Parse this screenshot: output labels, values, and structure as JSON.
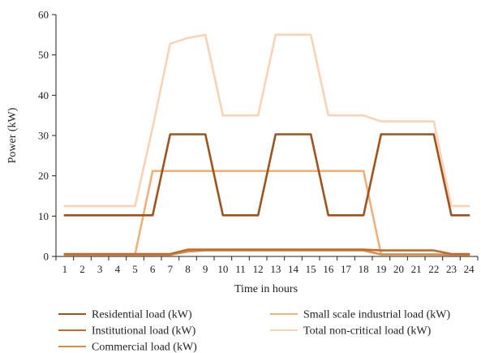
{
  "chart_data": {
    "type": "line",
    "title": "",
    "xlabel": "Time in hours",
    "ylabel": "Power (kW)",
    "categories": [
      "1",
      "2",
      "3",
      "4",
      "5",
      "6",
      "7",
      "8",
      "9",
      "10",
      "11",
      "12",
      "13",
      "14",
      "15",
      "16",
      "17",
      "18",
      "19",
      "20",
      "21",
      "22",
      "23",
      "24"
    ],
    "ylim": [
      0,
      60
    ],
    "yticks": [
      "0",
      "10",
      "20",
      "30",
      "40",
      "50",
      "60"
    ],
    "grid": false,
    "legend_position": "bottom",
    "series": [
      {
        "name": "Residential load (kW)",
        "color": "#a0521d",
        "values": [
          10.2,
          10.2,
          10.2,
          10.2,
          10.2,
          10.2,
          30.3,
          30.3,
          30.3,
          10.2,
          10.2,
          10.2,
          30.3,
          30.3,
          30.3,
          10.2,
          10.2,
          10.2,
          30.3,
          30.3,
          30.3,
          30.3,
          10.2,
          10.2
        ]
      },
      {
        "name": "Institutional load (kW)",
        "color": "#c06a2c",
        "values": [
          0.6,
          0.6,
          0.6,
          0.6,
          0.6,
          0.6,
          0.6,
          1.7,
          1.7,
          1.7,
          1.7,
          1.7,
          1.7,
          1.7,
          1.7,
          1.7,
          1.7,
          1.7,
          1.5,
          1.5,
          1.5,
          1.5,
          0.6,
          0.6
        ]
      },
      {
        "name": "Commercial load (kW)",
        "color": "#d98c4a",
        "values": [
          0.4,
          0.4,
          0.4,
          0.4,
          0.4,
          0.4,
          0.4,
          1.2,
          1.5,
          1.5,
          1.5,
          1.5,
          1.5,
          1.5,
          1.5,
          1.5,
          1.5,
          1.5,
          0.5,
          0.5,
          0.5,
          0.5,
          0.4,
          0.4
        ]
      },
      {
        "name": "Small scale industrial load (kW)",
        "color": "#f0b07a",
        "values": [
          0.5,
          0.5,
          0.5,
          0.5,
          0.5,
          21.2,
          21.2,
          21.2,
          21.2,
          21.2,
          21.2,
          21.2,
          21.2,
          21.2,
          21.2,
          21.2,
          21.2,
          21.2,
          0.5,
          0.5,
          0.5,
          0.5,
          0.5,
          0.5
        ]
      },
      {
        "name": "Total non-critical load (kW)",
        "color": "#f9d3b6",
        "values": [
          12.5,
          12.5,
          12.5,
          12.5,
          12.5,
          32.0,
          52.8,
          54.2,
          55.0,
          35.0,
          35.0,
          35.0,
          55.0,
          55.0,
          55.0,
          35.0,
          35.0,
          35.0,
          33.5,
          33.5,
          33.5,
          33.5,
          12.5,
          12.5
        ]
      }
    ]
  }
}
